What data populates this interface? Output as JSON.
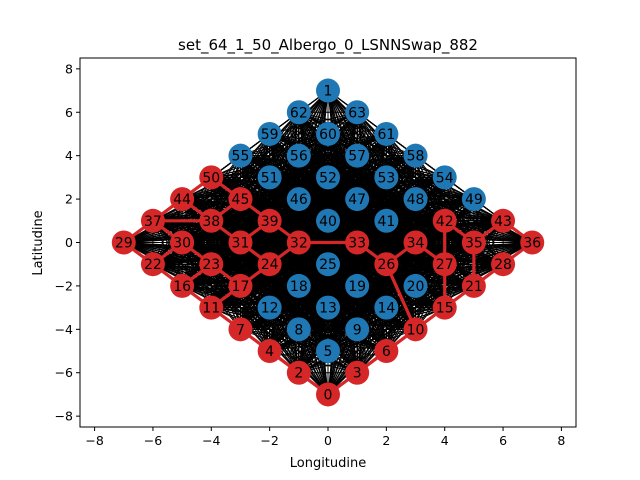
{
  "chart_data": {
    "type": "scatter",
    "title": "set_64_1_50_Albergo_0_LSNNSwap_882",
    "xlabel": "Longitudine",
    "ylabel": "Latitudine",
    "xlim": [
      -8.5,
      8.5
    ],
    "ylim": [
      -8.5,
      8.5
    ],
    "xticks": [
      -8,
      -6,
      -4,
      -2,
      0,
      2,
      4,
      6,
      8
    ],
    "yticks": [
      -8,
      -6,
      -4,
      -2,
      0,
      2,
      4,
      6,
      8
    ],
    "colors": {
      "red": "#d62728",
      "blue": "#1f77b4",
      "edge": "#000000"
    },
    "series": [
      {
        "color": "#d62728",
        "nodes": [
          {
            "id": 0,
            "x": 0,
            "y": -7
          },
          {
            "id": 2,
            "x": -1,
            "y": -6
          },
          {
            "id": 3,
            "x": 1,
            "y": -6
          },
          {
            "id": 4,
            "x": -2,
            "y": -5
          },
          {
            "id": 6,
            "x": 2,
            "y": -5
          },
          {
            "id": 7,
            "x": -3,
            "y": -4
          },
          {
            "id": 10,
            "x": 3,
            "y": -4
          },
          {
            "id": 11,
            "x": -4,
            "y": -3
          },
          {
            "id": 15,
            "x": 4,
            "y": -3
          },
          {
            "id": 16,
            "x": -5,
            "y": -2
          },
          {
            "id": 17,
            "x": -3,
            "y": -2
          },
          {
            "id": 21,
            "x": 5,
            "y": -2
          },
          {
            "id": 22,
            "x": -6,
            "y": -1
          },
          {
            "id": 23,
            "x": -4,
            "y": -1
          },
          {
            "id": 24,
            "x": -2,
            "y": -1
          },
          {
            "id": 26,
            "x": 2,
            "y": -1
          },
          {
            "id": 27,
            "x": 4,
            "y": -1
          },
          {
            "id": 28,
            "x": 6,
            "y": -1
          },
          {
            "id": 29,
            "x": -7,
            "y": 0
          },
          {
            "id": 30,
            "x": -5,
            "y": 0
          },
          {
            "id": 31,
            "x": -3,
            "y": 0
          },
          {
            "id": 32,
            "x": -1,
            "y": 0
          },
          {
            "id": 33,
            "x": 1,
            "y": 0
          },
          {
            "id": 34,
            "x": 3,
            "y": 0
          },
          {
            "id": 35,
            "x": 5,
            "y": 0
          },
          {
            "id": 36,
            "x": 7,
            "y": 0
          },
          {
            "id": 37,
            "x": -6,
            "y": 1
          },
          {
            "id": 38,
            "x": -4,
            "y": 1
          },
          {
            "id": 39,
            "x": -2,
            "y": 1
          },
          {
            "id": 42,
            "x": 4,
            "y": 1
          },
          {
            "id": 43,
            "x": 6,
            "y": 1
          },
          {
            "id": 44,
            "x": -5,
            "y": 2
          },
          {
            "id": 45,
            "x": -3,
            "y": 2
          },
          {
            "id": 50,
            "x": -4,
            "y": 3
          }
        ]
      },
      {
        "color": "#1f77b4",
        "nodes": [
          {
            "id": 1,
            "x": 0,
            "y": 7
          },
          {
            "id": 5,
            "x": 0,
            "y": -5
          },
          {
            "id": 8,
            "x": -1,
            "y": -4
          },
          {
            "id": 9,
            "x": 1,
            "y": -4
          },
          {
            "id": 12,
            "x": -2,
            "y": -3
          },
          {
            "id": 13,
            "x": 0,
            "y": -3
          },
          {
            "id": 14,
            "x": 2,
            "y": -3
          },
          {
            "id": 18,
            "x": -1,
            "y": -2
          },
          {
            "id": 19,
            "x": 1,
            "y": -2
          },
          {
            "id": 20,
            "x": 3,
            "y": -2
          },
          {
            "id": 25,
            "x": 0,
            "y": -1
          },
          {
            "id": 40,
            "x": 0,
            "y": 1
          },
          {
            "id": 41,
            "x": 2,
            "y": 1
          },
          {
            "id": 46,
            "x": -1,
            "y": 2
          },
          {
            "id": 47,
            "x": 1,
            "y": 2
          },
          {
            "id": 48,
            "x": 3,
            "y": 2
          },
          {
            "id": 49,
            "x": 5,
            "y": 2
          },
          {
            "id": 51,
            "x": -2,
            "y": 3
          },
          {
            "id": 52,
            "x": 0,
            "y": 3
          },
          {
            "id": 53,
            "x": 2,
            "y": 3
          },
          {
            "id": 54,
            "x": 4,
            "y": 3
          },
          {
            "id": 55,
            "x": -3,
            "y": 4
          },
          {
            "id": 56,
            "x": -1,
            "y": 4
          },
          {
            "id": 57,
            "x": 1,
            "y": 4
          },
          {
            "id": 58,
            "x": 3,
            "y": 4
          },
          {
            "id": 59,
            "x": -2,
            "y": 5
          },
          {
            "id": 60,
            "x": 0,
            "y": 5
          },
          {
            "id": 61,
            "x": 2,
            "y": 5
          },
          {
            "id": 62,
            "x": -1,
            "y": 6
          },
          {
            "id": 63,
            "x": 1,
            "y": 6
          }
        ]
      }
    ],
    "red_edges": [
      [
        29,
        37
      ],
      [
        29,
        22
      ],
      [
        37,
        44
      ],
      [
        44,
        50
      ],
      [
        22,
        16
      ],
      [
        16,
        11
      ],
      [
        11,
        7
      ],
      [
        7,
        4
      ],
      [
        4,
        2
      ],
      [
        2,
        0
      ],
      [
        0,
        3
      ],
      [
        3,
        6
      ],
      [
        6,
        10
      ],
      [
        10,
        15
      ],
      [
        15,
        21
      ],
      [
        21,
        28
      ],
      [
        28,
        36
      ],
      [
        36,
        43
      ],
      [
        43,
        35
      ],
      [
        35,
        42
      ],
      [
        42,
        27
      ],
      [
        27,
        34
      ],
      [
        34,
        26
      ],
      [
        50,
        45
      ],
      [
        45,
        39
      ],
      [
        39,
        32
      ],
      [
        32,
        33
      ],
      [
        33,
        26
      ],
      [
        44,
        38
      ],
      [
        38,
        31
      ],
      [
        31,
        24
      ],
      [
        24,
        17
      ],
      [
        17,
        23
      ],
      [
        23,
        30
      ],
      [
        30,
        37
      ],
      [
        21,
        35
      ],
      [
        15,
        27
      ],
      [
        10,
        26
      ],
      [
        6,
        3
      ],
      [
        2,
        4
      ],
      [
        30,
        22
      ],
      [
        23,
        16
      ],
      [
        24,
        31
      ],
      [
        37,
        38
      ],
      [
        38,
        45
      ],
      [
        39,
        31
      ],
      [
        17,
        11
      ],
      [
        32,
        24
      ]
    ],
    "black_edges": "complete"
  }
}
